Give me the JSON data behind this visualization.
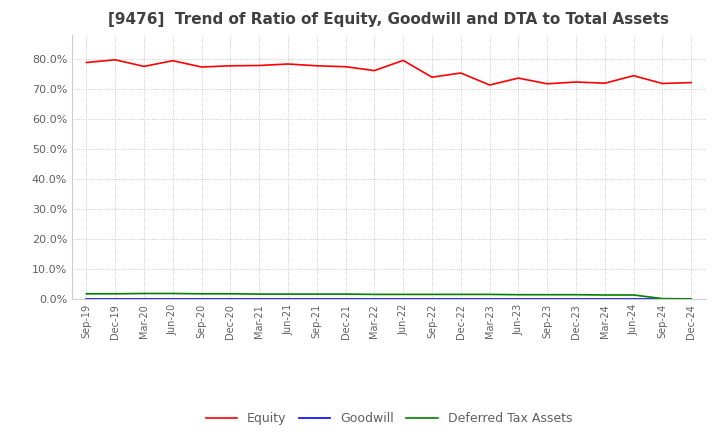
{
  "title": "[9476]  Trend of Ratio of Equity, Goodwill and DTA to Total Assets",
  "x_labels": [
    "Sep-19",
    "Dec-19",
    "Mar-20",
    "Jun-20",
    "Sep-20",
    "Dec-20",
    "Mar-21",
    "Jun-21",
    "Sep-21",
    "Dec-21",
    "Mar-22",
    "Jun-22",
    "Sep-22",
    "Dec-22",
    "Mar-23",
    "Jun-23",
    "Sep-23",
    "Dec-23",
    "Mar-24",
    "Jun-24",
    "Sep-24",
    "Dec-24"
  ],
  "equity": [
    0.789,
    0.798,
    0.776,
    0.795,
    0.774,
    0.778,
    0.779,
    0.784,
    0.778,
    0.775,
    0.762,
    0.796,
    0.74,
    0.754,
    0.714,
    0.737,
    0.718,
    0.724,
    0.72,
    0.745,
    0.719,
    0.722
  ],
  "goodwill": [
    0.0,
    0.0,
    0.0,
    0.0,
    0.0,
    0.0,
    0.0,
    0.0,
    0.0,
    0.0,
    0.0,
    0.0,
    0.0,
    0.0,
    0.0,
    0.0,
    0.0,
    0.0,
    0.0,
    0.0,
    0.0,
    0.0
  ],
  "dta": [
    0.018,
    0.018,
    0.019,
    0.019,
    0.018,
    0.018,
    0.017,
    0.017,
    0.017,
    0.017,
    0.016,
    0.016,
    0.016,
    0.016,
    0.016,
    0.015,
    0.015,
    0.015,
    0.014,
    0.014,
    0.002,
    0.001
  ],
  "equity_color": "#ff0000",
  "goodwill_color": "#0000ff",
  "dta_color": "#008000",
  "bg_color": "#ffffff",
  "plot_bg_color": "#ffffff",
  "grid_color": "#aaaaaa",
  "ylim": [
    0.0,
    0.88
  ],
  "yticks": [
    0.0,
    0.1,
    0.2,
    0.3,
    0.4,
    0.5,
    0.6,
    0.7,
    0.8
  ],
  "title_fontsize": 11,
  "title_color": "#404040",
  "tick_color": "#606060",
  "legend_labels": [
    "Equity",
    "Goodwill",
    "Deferred Tax Assets"
  ],
  "line_width": 1.2
}
